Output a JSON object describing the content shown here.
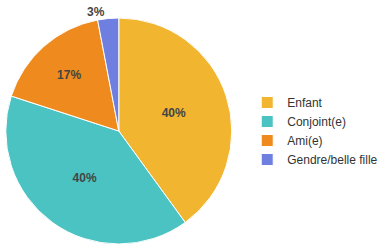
{
  "chart_data": {
    "type": "pie",
    "categories": [
      "Enfant",
      "Conjoint(e)",
      "Ami(e)",
      "Gendre/belle fille"
    ],
    "values": [
      40,
      40,
      17,
      3
    ],
    "value_labels": [
      "40%",
      "40%",
      "17%",
      "3%"
    ],
    "colors": [
      "#f2b530",
      "#4cc3c3",
      "#ef8a1e",
      "#6f7fe0"
    ],
    "data_labels": true,
    "legend": "right"
  }
}
